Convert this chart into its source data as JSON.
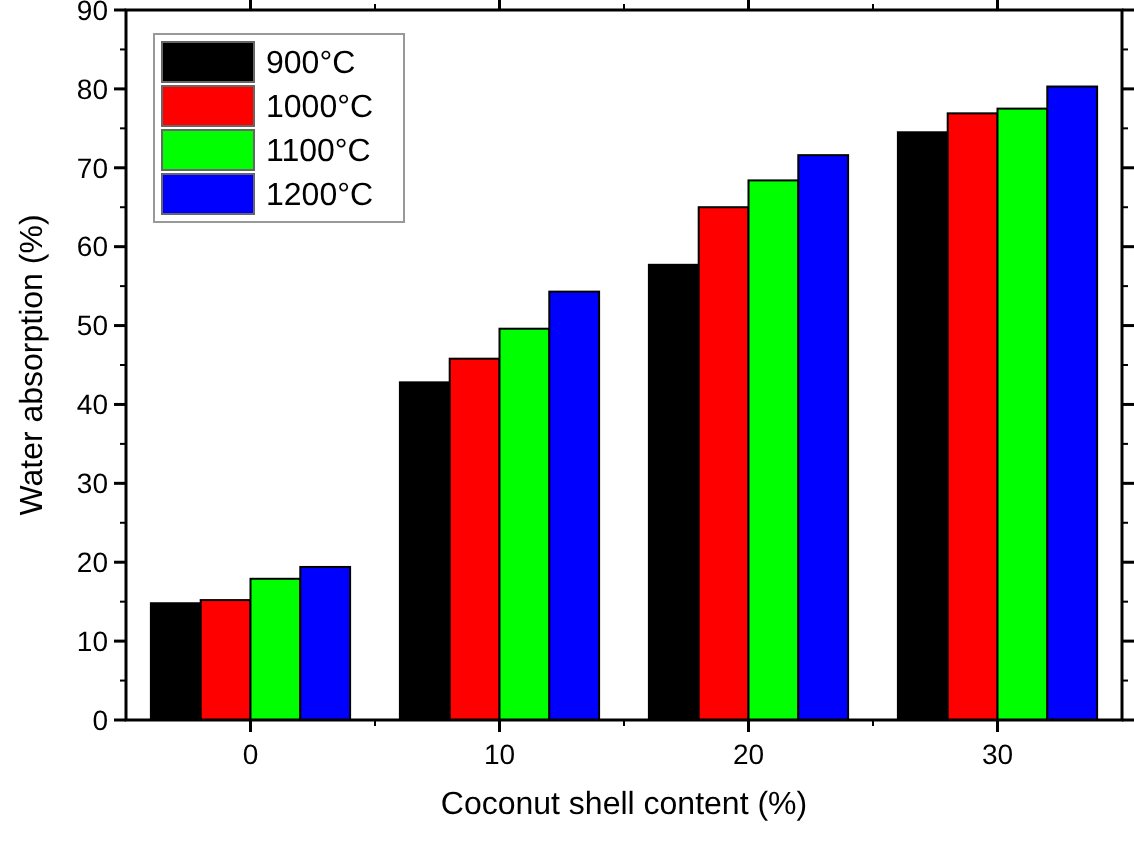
{
  "chart_data": {
    "type": "bar",
    "xlabel": "Coconut shell content (%)",
    "ylabel": "Water absorption (%)",
    "categories": [
      "0",
      "10",
      "20",
      "30"
    ],
    "series": [
      {
        "name": "900°C",
        "color": "#000000",
        "values": [
          14.8,
          42.8,
          57.7,
          74.5
        ]
      },
      {
        "name": "1000°C",
        "color": "#ff0000",
        "values": [
          15.2,
          45.8,
          65.0,
          76.9
        ]
      },
      {
        "name": "1100°C",
        "color": "#00ff00",
        "values": [
          17.9,
          49.6,
          68.4,
          77.5
        ]
      },
      {
        "name": "1200°C",
        "color": "#0000ff",
        "values": [
          19.4,
          54.3,
          71.6,
          80.3
        ]
      }
    ],
    "ylim": [
      0,
      90
    ],
    "yticks": [
      0,
      10,
      20,
      30,
      40,
      50,
      60,
      70,
      80,
      90
    ],
    "legend": "top left",
    "grid": false
  }
}
